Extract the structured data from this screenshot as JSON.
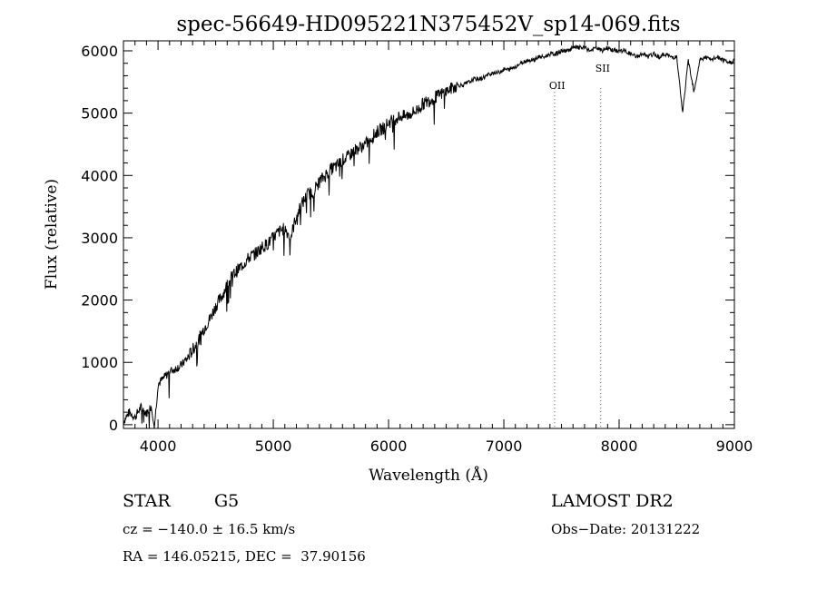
{
  "chart_data": {
    "type": "line",
    "title": "spec-56649-HD095221N375452V_sp14-069.fits",
    "xlabel": "Wavelength (Å)",
    "ylabel": "Flux (relative)",
    "xlim": [
      3700,
      9000
    ],
    "ylim": [
      -60,
      6160
    ],
    "x_ticks": [
      4000,
      5000,
      6000,
      7000,
      8000,
      9000
    ],
    "y_ticks": [
      0,
      1000,
      2000,
      3000,
      4000,
      5000,
      6000
    ],
    "grid": false,
    "line_color": "#000000",
    "series": [
      {
        "x": [
          3700,
          3750,
          3800,
          3850,
          3900,
          3940,
          3970,
          4000,
          4050,
          4100,
          4150,
          4200,
          4250,
          4300,
          4350,
          4400,
          4450,
          4500,
          4550,
          4600,
          4650,
          4700,
          4750,
          4800,
          4850,
          4900,
          4950,
          5000,
          5050,
          5100,
          5150,
          5200,
          5250,
          5300,
          5350,
          5400,
          5450,
          5500,
          5550,
          5600,
          5650,
          5700,
          5750,
          5800,
          5850,
          5900,
          5950,
          6000,
          6050,
          6100,
          6150,
          6200,
          6250,
          6300,
          6350,
          6400,
          6450,
          6500,
          6550,
          6600,
          6650,
          6700,
          6750,
          6800,
          6850,
          6900,
          6950,
          7000,
          7050,
          7100,
          7150,
          7200,
          7250,
          7300,
          7350,
          7400,
          7450,
          7500,
          7550,
          7600,
          7650,
          7700,
          7750,
          7800,
          7850,
          7900,
          7950,
          8000,
          8050,
          8100,
          8150,
          8200,
          8250,
          8300,
          8350,
          8400,
          8450,
          8500,
          8550,
          8600,
          8650,
          8700,
          8750,
          8800,
          8850,
          8900,
          8950,
          9000
        ],
        "y": [
          50,
          200,
          120,
          280,
          180,
          300,
          0,
          650,
          750,
          850,
          900,
          950,
          1050,
          1200,
          1350,
          1550,
          1700,
          1900,
          2050,
          2250,
          2400,
          2500,
          2600,
          2700,
          2750,
          2850,
          2900,
          3000,
          3100,
          3150,
          3000,
          3350,
          3550,
          3700,
          3750,
          3900,
          4000,
          4100,
          4150,
          4250,
          4300,
          4400,
          4450,
          4500,
          4600,
          4700,
          4750,
          4850,
          4900,
          4950,
          4950,
          5000,
          5050,
          5150,
          5200,
          5250,
          5300,
          5350,
          5400,
          5450,
          5450,
          5500,
          5550,
          5550,
          5600,
          5650,
          5650,
          5700,
          5700,
          5750,
          5800,
          5850,
          5850,
          5900,
          5900,
          5950,
          5950,
          6000,
          6000,
          6050,
          6050,
          6050,
          6000,
          6050,
          6000,
          6050,
          6000,
          6000,
          6000,
          5950,
          5900,
          5950,
          5900,
          5950,
          5900,
          5950,
          5900,
          5900,
          5000,
          5850,
          5350,
          5850,
          5900,
          5850,
          5900,
          5850,
          5800,
          5850
        ]
      }
    ],
    "annotations": [
      {
        "label": "OII",
        "x": 7440
      },
      {
        "label": "SII",
        "x": 7840
      }
    ]
  },
  "info": {
    "object_class": "STAR",
    "subclass": "G5",
    "survey": "LAMOST DR2",
    "cz": "cz = −140.0 ± 16.5 km/s",
    "obs_date": "Obs−Date: 20131222",
    "coords": "RA = 146.05215, DEC =  37.90156"
  }
}
